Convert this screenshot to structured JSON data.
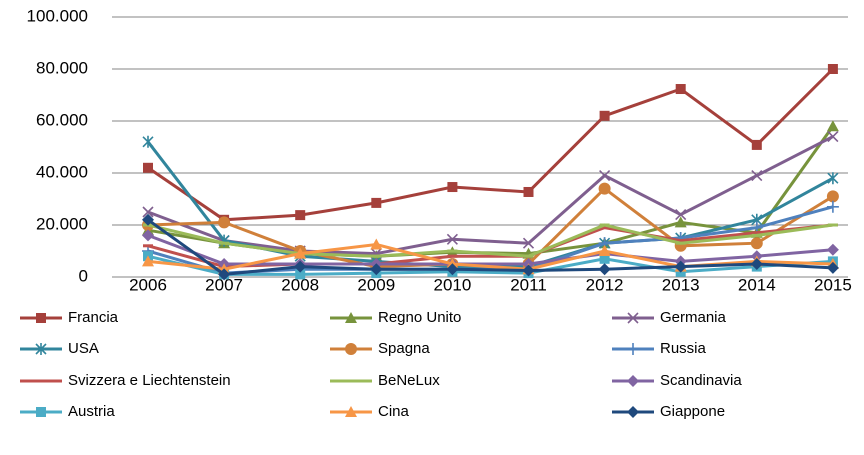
{
  "chart_data": {
    "type": "line",
    "categories": [
      "2006",
      "2007",
      "2008",
      "2009",
      "2010",
      "2011",
      "2012",
      "2013",
      "2014",
      "2015"
    ],
    "ylim": [
      0,
      100000
    ],
    "yticks": [
      0,
      {
        "value": 20000,
        "label": "20.000"
      },
      {
        "value": 40000,
        "label": "40.000"
      },
      {
        "value": 60000,
        "label": "60.000"
      },
      {
        "value": 80000,
        "label": "80.000"
      },
      {
        "value": 100000,
        "label": "100.000"
      }
    ],
    "grid": true,
    "series": [
      {
        "name": "Francia",
        "color": "#A5403B",
        "marker": "square",
        "values": [
          42000,
          22000,
          23800,
          28500,
          34600,
          32700,
          62000,
          72300,
          50800,
          80000
        ]
      },
      {
        "name": "Regno Unito",
        "color": "#77933C",
        "marker": "triangle",
        "values": [
          18000,
          13000,
          9000,
          8000,
          9500,
          9000,
          13000,
          21000,
          17000,
          58000
        ]
      },
      {
        "name": "Germania",
        "color": "#7F5F8F",
        "marker": "x",
        "values": [
          25000,
          14000,
          10000,
          9000,
          14500,
          13000,
          39000,
          24000,
          39000,
          54000
        ]
      },
      {
        "name": "USA",
        "color": "#31859C",
        "marker": "asterisk",
        "values": [
          52000,
          14000,
          8000,
          6000,
          4000,
          4000,
          13000,
          15000,
          22000,
          38000
        ]
      },
      {
        "name": "Spagna",
        "color": "#D0803A",
        "marker": "circle",
        "values": [
          20000,
          21000,
          10000,
          4000,
          5000,
          5000,
          34000,
          12000,
          13000,
          31000
        ]
      },
      {
        "name": "Russia",
        "color": "#4F81BD",
        "marker": "plus",
        "values": [
          10000,
          1500,
          3000,
          3000,
          3000,
          3000,
          13000,
          15000,
          19000,
          27000
        ]
      },
      {
        "name": "Svizzera e Liechtenstein",
        "color": "#C0504D",
        "marker": "dash",
        "values": [
          12000,
          4000,
          5000,
          5000,
          8000,
          8000,
          19000,
          14000,
          17000,
          20000
        ]
      },
      {
        "name": "BeNeLux",
        "color": "#9BBB59",
        "marker": "dash",
        "values": [
          20000,
          13000,
          9000,
          8000,
          10000,
          8000,
          20000,
          13000,
          16000,
          20000
        ]
      },
      {
        "name": "Scandinavia",
        "color": "#8064A2",
        "marker": "diamond",
        "values": [
          16000,
          5000,
          5000,
          5000,
          5000,
          5000,
          9000,
          6000,
          8000,
          10500
        ]
      },
      {
        "name": "Austria",
        "color": "#4BACC6",
        "marker": "square",
        "values": [
          8000,
          1000,
          1000,
          1500,
          2000,
          1500,
          7000,
          2000,
          4000,
          6000
        ]
      },
      {
        "name": "Cina",
        "color": "#F79646",
        "marker": "triangle",
        "values": [
          6000,
          3000,
          9000,
          12500,
          5000,
          3000,
          10000,
          4000,
          6000,
          5000
        ]
      },
      {
        "name": "Giappone",
        "color": "#1F497D",
        "marker": "diamond",
        "values": [
          22000,
          1000,
          4000,
          3000,
          3000,
          2500,
          3000,
          4000,
          5000,
          3500
        ]
      }
    ]
  }
}
